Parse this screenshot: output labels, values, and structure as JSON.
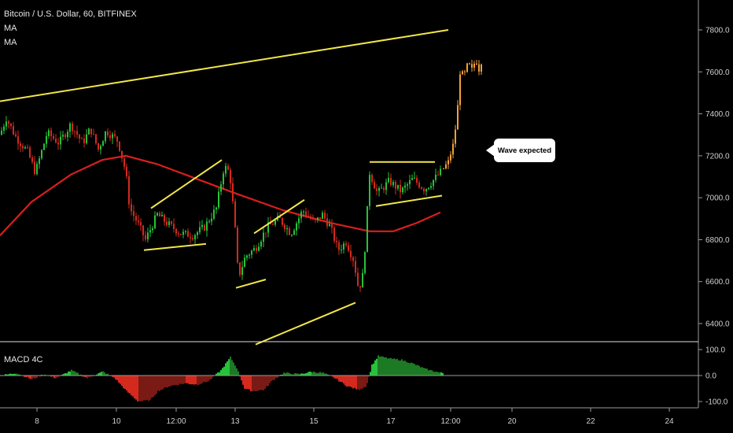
{
  "header": {
    "title": "Bitcoin / U.S. Dollar, 60, BITFINEX",
    "indicators": [
      "MA",
      "MA"
    ]
  },
  "annotation": {
    "text": "Wave expected"
  },
  "macd": {
    "label": "MACD 4C"
  },
  "colors": {
    "background": "#000000",
    "up_candle": "#26c23a",
    "down_candle": "#d42a1e",
    "projection_candle": "#f5a03a",
    "moving_average": "#d91e1e",
    "trendline": "#f2e64a",
    "axis_line": "#9a9a9a"
  },
  "chart_data": [
    {
      "type": "candlestick",
      "title": "Bitcoin / U.S. Dollar, 60, BITFINEX",
      "ylim": [
        6300,
        7900
      ],
      "y_ticks": [
        "7800.0",
        "7600.0",
        "7400.0",
        "7200.0",
        "7000.0",
        "6800.0",
        "6600.0",
        "6400.0"
      ],
      "x_ticks": [
        "8",
        "10",
        "12:00",
        "13",
        "15",
        "17",
        "12:00",
        "20",
        "22",
        "24"
      ],
      "price_path": [
        {
          "x": 0,
          "y": 7300
        },
        {
          "x": 8,
          "y": 7380
        },
        {
          "x": 20,
          "y": 7290
        },
        {
          "x": 35,
          "y": 7220
        },
        {
          "x": 45,
          "y": 7120
        },
        {
          "x": 60,
          "y": 7310
        },
        {
          "x": 75,
          "y": 7260
        },
        {
          "x": 90,
          "y": 7350
        },
        {
          "x": 105,
          "y": 7260
        },
        {
          "x": 115,
          "y": 7330
        },
        {
          "x": 125,
          "y": 7230
        },
        {
          "x": 135,
          "y": 7320
        },
        {
          "x": 150,
          "y": 7270
        },
        {
          "x": 160,
          "y": 7120
        },
        {
          "x": 165,
          "y": 6950
        },
        {
          "x": 175,
          "y": 6880
        },
        {
          "x": 185,
          "y": 6800
        },
        {
          "x": 200,
          "y": 6920
        },
        {
          "x": 215,
          "y": 6870
        },
        {
          "x": 230,
          "y": 6830
        },
        {
          "x": 245,
          "y": 6820
        },
        {
          "x": 260,
          "y": 6860
        },
        {
          "x": 275,
          "y": 6950
        },
        {
          "x": 285,
          "y": 7150
        },
        {
          "x": 292,
          "y": 7120
        },
        {
          "x": 298,
          "y": 6900
        },
        {
          "x": 303,
          "y": 6620
        },
        {
          "x": 312,
          "y": 6720
        },
        {
          "x": 325,
          "y": 6760
        },
        {
          "x": 340,
          "y": 6860
        },
        {
          "x": 355,
          "y": 6900
        },
        {
          "x": 370,
          "y": 6830
        },
        {
          "x": 385,
          "y": 6940
        },
        {
          "x": 400,
          "y": 6880
        },
        {
          "x": 410,
          "y": 6920
        },
        {
          "x": 420,
          "y": 6860
        },
        {
          "x": 430,
          "y": 6750
        },
        {
          "x": 440,
          "y": 6790
        },
        {
          "x": 450,
          "y": 6700
        },
        {
          "x": 456,
          "y": 6560
        },
        {
          "x": 462,
          "y": 6640
        },
        {
          "x": 470,
          "y": 7120
        },
        {
          "x": 480,
          "y": 7020
        },
        {
          "x": 495,
          "y": 7080
        },
        {
          "x": 510,
          "y": 7030
        },
        {
          "x": 525,
          "y": 7090
        },
        {
          "x": 540,
          "y": 7040
        },
        {
          "x": 555,
          "y": 7100
        },
        {
          "x": 562,
          "y": 7130
        }
      ],
      "projection_path": [
        {
          "x": 564,
          "y": 7140
        },
        {
          "x": 570,
          "y": 7170
        },
        {
          "x": 576,
          "y": 7250
        },
        {
          "x": 581,
          "y": 7380
        },
        {
          "x": 585,
          "y": 7600
        },
        {
          "x": 590,
          "y": 7580
        },
        {
          "x": 595,
          "y": 7640
        },
        {
          "x": 600,
          "y": 7610
        },
        {
          "x": 605,
          "y": 7660
        },
        {
          "x": 610,
          "y": 7600
        },
        {
          "x": 614,
          "y": 7700
        }
      ],
      "moving_average": [
        {
          "x": 0,
          "y": 6820
        },
        {
          "x": 40,
          "y": 6980
        },
        {
          "x": 90,
          "y": 7110
        },
        {
          "x": 130,
          "y": 7180
        },
        {
          "x": 160,
          "y": 7200
        },
        {
          "x": 200,
          "y": 7160
        },
        {
          "x": 250,
          "y": 7090
        },
        {
          "x": 300,
          "y": 7020
        },
        {
          "x": 360,
          "y": 6940
        },
        {
          "x": 420,
          "y": 6880
        },
        {
          "x": 470,
          "y": 6840
        },
        {
          "x": 500,
          "y": 6840
        },
        {
          "x": 530,
          "y": 6880
        },
        {
          "x": 560,
          "y": 6930
        }
      ],
      "trendlines": [
        {
          "name": "upper-channel",
          "x1": 0,
          "y1": 7460,
          "x2": 570,
          "y2": 7800
        },
        {
          "name": "flag-1-top",
          "x1": 192,
          "y1": 6950,
          "x2": 282,
          "y2": 7180
        },
        {
          "name": "flag-1-bottom",
          "x1": 183,
          "y1": 6750,
          "x2": 262,
          "y2": 6780
        },
        {
          "name": "flag-2-top",
          "x1": 323,
          "y1": 6830,
          "x2": 387,
          "y2": 6990
        },
        {
          "name": "flag-2-bottom",
          "x1": 300,
          "y1": 6570,
          "x2": 338,
          "y2": 6610
        },
        {
          "name": "lower-channel",
          "x1": 325,
          "y1": 6300,
          "x2": 452,
          "y2": 6500
        },
        {
          "name": "range-top",
          "x1": 470,
          "y1": 7170,
          "x2": 553,
          "y2": 7170
        },
        {
          "name": "range-bottom",
          "x1": 478,
          "y1": 6960,
          "x2": 562,
          "y2": 7010
        }
      ]
    },
    {
      "type": "bar",
      "title": "MACD 4C",
      "ylim": [
        -120,
        120
      ],
      "y_ticks": [
        "100.0",
        "0.0",
        "-100.0"
      ],
      "histogram_path": [
        {
          "x": 0,
          "y": 0
        },
        {
          "x": 20,
          "y": 10
        },
        {
          "x": 40,
          "y": -15
        },
        {
          "x": 55,
          "y": 5
        },
        {
          "x": 70,
          "y": -10
        },
        {
          "x": 90,
          "y": 20
        },
        {
          "x": 110,
          "y": -10
        },
        {
          "x": 130,
          "y": 15
        },
        {
          "x": 145,
          "y": -10
        },
        {
          "x": 160,
          "y": -60
        },
        {
          "x": 175,
          "y": -100
        },
        {
          "x": 190,
          "y": -95
        },
        {
          "x": 200,
          "y": -60
        },
        {
          "x": 215,
          "y": -40
        },
        {
          "x": 235,
          "y": -30
        },
        {
          "x": 250,
          "y": -35
        },
        {
          "x": 265,
          "y": -20
        },
        {
          "x": 280,
          "y": 20
        },
        {
          "x": 292,
          "y": 70
        },
        {
          "x": 300,
          "y": 30
        },
        {
          "x": 310,
          "y": -50
        },
        {
          "x": 320,
          "y": -60
        },
        {
          "x": 335,
          "y": -55
        },
        {
          "x": 345,
          "y": -20
        },
        {
          "x": 360,
          "y": 10
        },
        {
          "x": 380,
          "y": 5
        },
        {
          "x": 395,
          "y": 15
        },
        {
          "x": 410,
          "y": 10
        },
        {
          "x": 425,
          "y": -10
        },
        {
          "x": 440,
          "y": -40
        },
        {
          "x": 455,
          "y": -55
        },
        {
          "x": 465,
          "y": -40
        },
        {
          "x": 472,
          "y": 40
        },
        {
          "x": 480,
          "y": 75
        },
        {
          "x": 495,
          "y": 65
        },
        {
          "x": 510,
          "y": 60
        },
        {
          "x": 525,
          "y": 45
        },
        {
          "x": 540,
          "y": 25
        },
        {
          "x": 560,
          "y": 10
        }
      ]
    }
  ]
}
